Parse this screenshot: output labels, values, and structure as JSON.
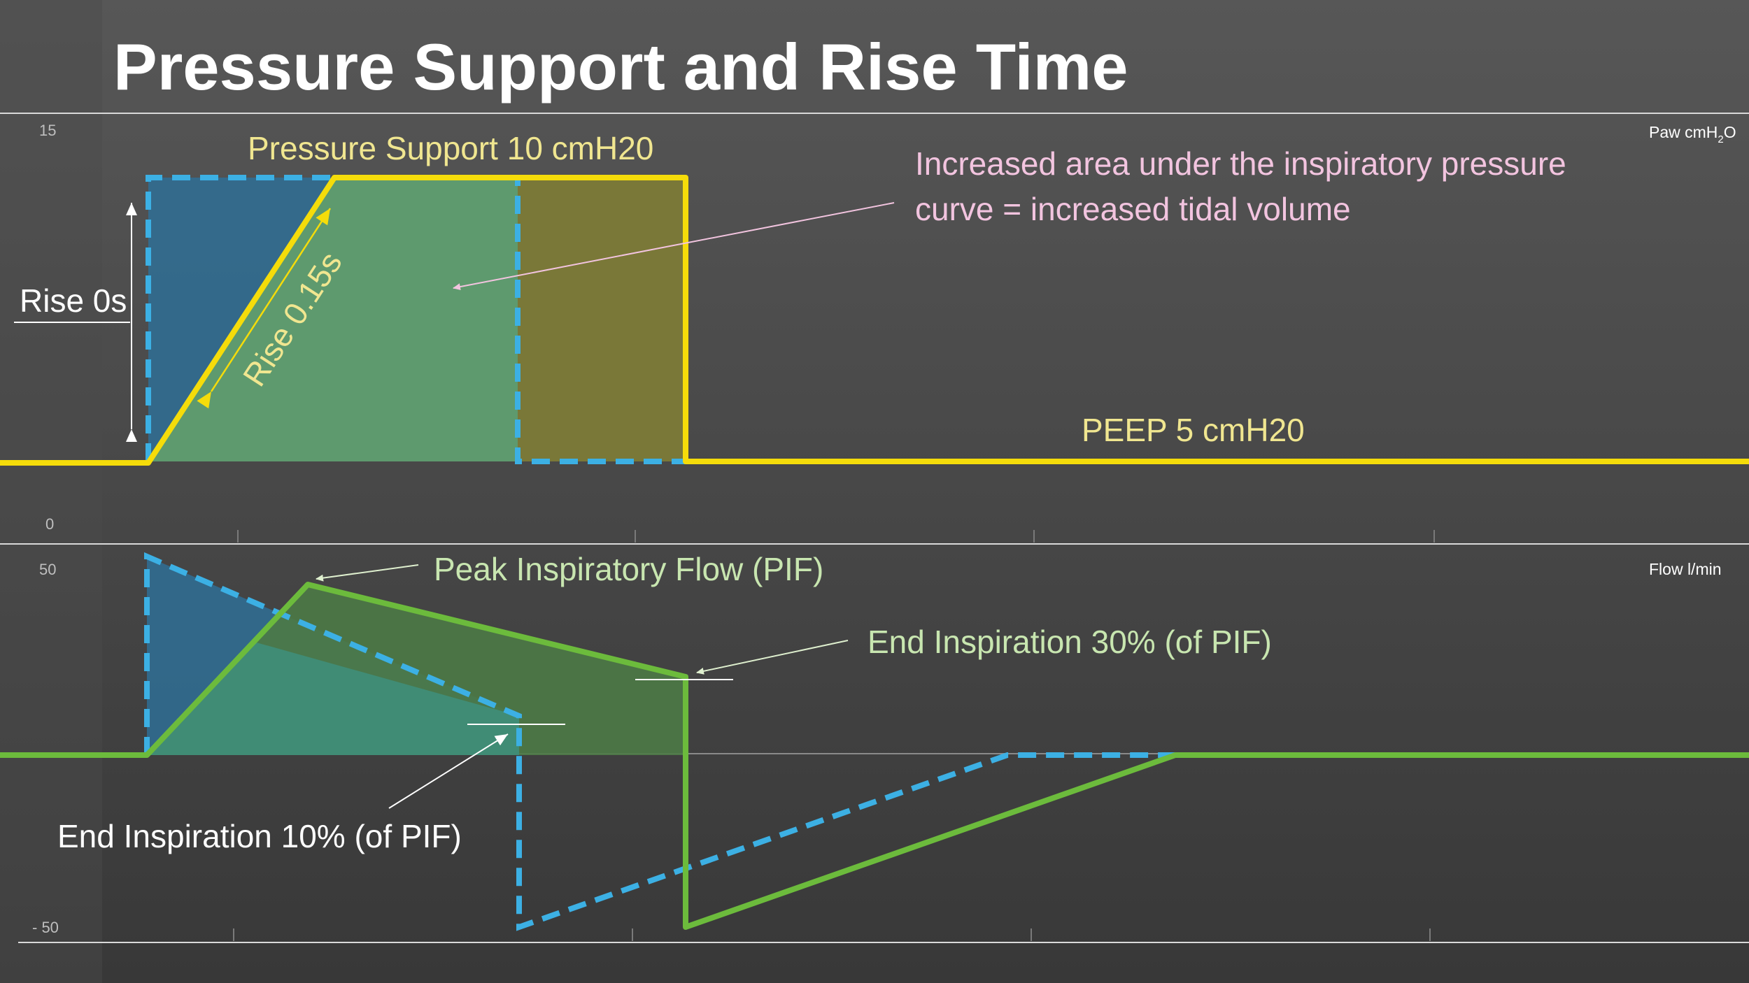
{
  "title": "Pressure Support and Rise Time",
  "colors": {
    "pressure_support": "#f5dc0a",
    "rise_zero": "#3cb0e4",
    "flow_rise": "#6cbb3c",
    "pressure_annotation": "#f0e690",
    "area_annotation": "#f2c4df",
    "flow_annotation": "#c8e6b0",
    "white_annotation": "#ffffff"
  },
  "pressure_panel": {
    "unit": "Paw cmH",
    "unit_sub": "2",
    "unit_tail": "O",
    "y_top": "15",
    "y_bottom": "0",
    "label_ps": "Pressure Support 10 cmH20",
    "label_area_line1": "Increased area under the inspiratory pressure",
    "label_area_line2": "curve = increased tidal volume",
    "label_peep": "PEEP 5 cmH20",
    "label_rise0": "Rise 0s",
    "label_rise015": "Rise 0.15s"
  },
  "flow_panel": {
    "unit": "Flow l/min",
    "y_top": "50",
    "y_bottom": "- 50",
    "label_pif": "Peak Inspiratory Flow (PIF)",
    "label_end30": "End Inspiration 30% (of PIF)",
    "label_end10": "End Inspiration 10% (of PIF)"
  }
}
